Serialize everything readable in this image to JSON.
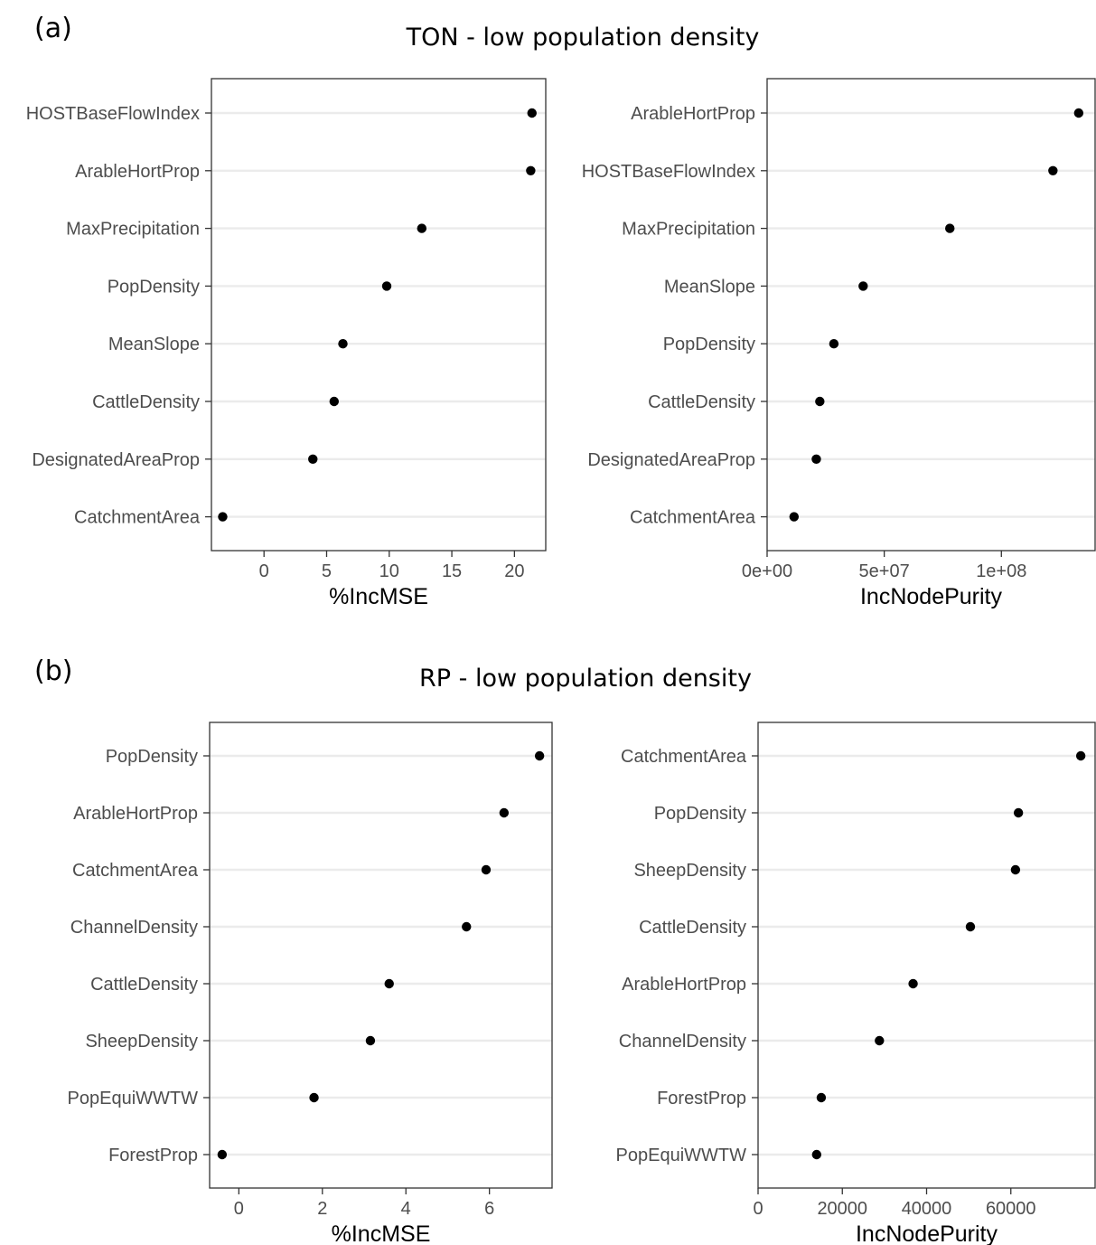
{
  "figure": {
    "panel_a_label": "(a)",
    "panel_b_label": "(b)",
    "title_a": "TON - low population density",
    "title_b": "RP - low population density"
  },
  "chart_data": [
    {
      "type": "scatter",
      "panel": "(a)",
      "title": "TON - low population density",
      "xlabel": "%IncMSE",
      "ylabel": "",
      "categories": [
        "HOSTBaseFlowIndex",
        "ArableHortProp",
        "MaxPrecipitation",
        "PopDensity",
        "MeanSlope",
        "CattleDensity",
        "DesignatedAreaProp",
        "CatchmentArea"
      ],
      "values": [
        21.4,
        21.3,
        12.6,
        9.8,
        6.3,
        5.6,
        3.9,
        -3.3
      ],
      "xlim": [
        -4.2,
        22.5
      ],
      "xticks": [
        0,
        5,
        10,
        15,
        20
      ],
      "xtick_labels": [
        "0",
        "5",
        "10",
        "15",
        "20"
      ],
      "grid": true
    },
    {
      "type": "scatter",
      "panel": "(a)",
      "title": "TON - low population density",
      "xlabel": "IncNodePurity",
      "ylabel": "",
      "categories": [
        "ArableHortProp",
        "HOSTBaseFlowIndex",
        "MaxPrecipitation",
        "MeanSlope",
        "PopDensity",
        "CattleDensity",
        "DesignatedAreaProp",
        "CatchmentArea"
      ],
      "values": [
        133000000,
        122000000,
        78000000,
        41000000,
        28500000,
        22500000,
        21000000,
        11500000
      ],
      "xlim": [
        0,
        140000000
      ],
      "xticks": [
        0,
        50000000,
        100000000
      ],
      "xtick_labels": [
        "0e+00",
        "5e+07",
        "1e+08"
      ],
      "grid": true
    },
    {
      "type": "scatter",
      "panel": "(b)",
      "title": "RP - low population density",
      "xlabel": "%IncMSE",
      "ylabel": "",
      "categories": [
        "PopDensity",
        "ArableHortProp",
        "CatchmentArea",
        "ChannelDensity",
        "CattleDensity",
        "SheepDensity",
        "PopEquiWWTW",
        "ForestProp"
      ],
      "values": [
        7.2,
        6.35,
        5.92,
        5.45,
        3.6,
        3.15,
        1.8,
        -0.4
      ],
      "xlim": [
        -0.7,
        7.5
      ],
      "xticks": [
        0,
        2,
        4,
        6
      ],
      "xtick_labels": [
        "0",
        "2",
        "4",
        "6"
      ],
      "grid": true
    },
    {
      "type": "scatter",
      "panel": "(b)",
      "title": "RP - low population density",
      "xlabel": "IncNodePurity",
      "ylabel": "",
      "categories": [
        "CatchmentArea",
        "PopDensity",
        "SheepDensity",
        "CattleDensity",
        "ArableHortProp",
        "ChannelDensity",
        "ForestProp",
        "PopEquiWWTW"
      ],
      "values": [
        76600,
        61800,
        61100,
        50400,
        36800,
        28800,
        15000,
        13900
      ],
      "xlim": [
        0,
        80000
      ],
      "xticks": [
        0,
        20000,
        40000,
        60000
      ],
      "xtick_labels": [
        "0",
        "20000",
        "40000",
        "60000"
      ],
      "grid": true
    }
  ]
}
